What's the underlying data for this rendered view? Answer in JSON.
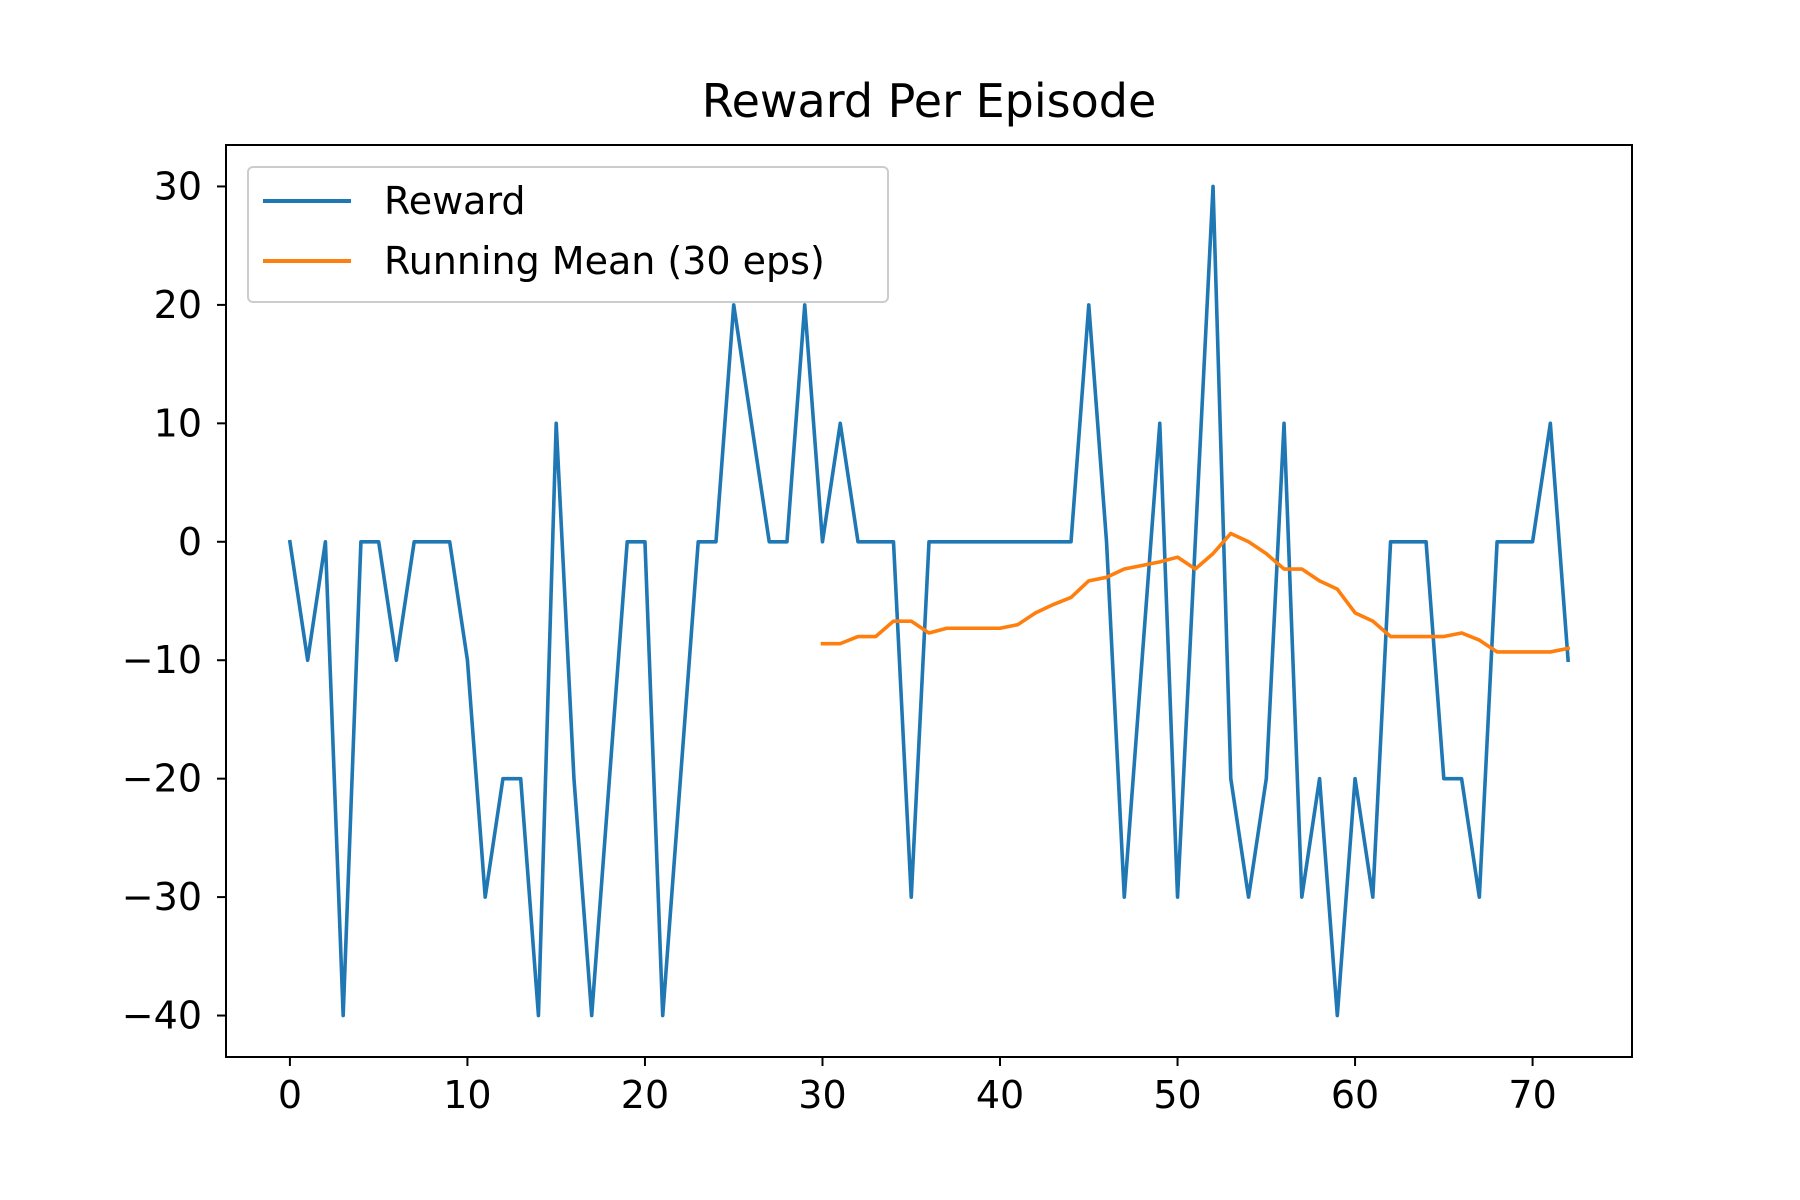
{
  "chart_data": {
    "type": "line",
    "title": "Reward Per Episode",
    "xlabel": "",
    "ylabel": "",
    "xlim": [
      -3.6,
      75.6
    ],
    "ylim": [
      -43.5,
      33.5
    ],
    "x_ticks": [
      0,
      10,
      20,
      30,
      40,
      50,
      60,
      70
    ],
    "y_ticks": [
      30,
      20,
      10,
      0,
      -10,
      -20,
      -30,
      -40
    ],
    "x_tick_labels": [
      "0",
      "10",
      "20",
      "30",
      "40",
      "50",
      "60",
      "70"
    ],
    "y_tick_labels": [
      "30",
      "20",
      "10",
      "0",
      "−10",
      "−20",
      "−30",
      "−40"
    ],
    "grid": false,
    "legend_position": "top-left",
    "series": [
      {
        "name": "Reward",
        "color": "#1f77b4",
        "x": [
          0,
          1,
          2,
          3,
          4,
          5,
          6,
          7,
          8,
          9,
          10,
          11,
          12,
          13,
          14,
          15,
          16,
          17,
          18,
          19,
          20,
          21,
          22,
          23,
          24,
          25,
          26,
          27,
          28,
          29,
          30,
          31,
          32,
          33,
          34,
          35,
          36,
          37,
          38,
          39,
          40,
          41,
          42,
          43,
          44,
          45,
          46,
          47,
          48,
          49,
          50,
          51,
          52,
          53,
          54,
          55,
          56,
          57,
          58,
          59,
          60,
          61,
          62,
          63,
          64,
          65,
          66,
          67,
          68,
          69,
          70,
          71,
          72
        ],
        "values": [
          0,
          -10,
          0,
          -40,
          0,
          0,
          -10,
          0,
          0,
          0,
          -10,
          -30,
          -20,
          -20,
          -40,
          10,
          -20,
          -40,
          -20,
          0,
          0,
          -40,
          -20,
          0,
          0,
          20,
          10,
          0,
          0,
          20,
          0,
          10,
          0,
          0,
          0,
          -30,
          0,
          0,
          0,
          0,
          0,
          0,
          0,
          0,
          0,
          20,
          0,
          -30,
          -10,
          10,
          -30,
          0,
          30,
          -20,
          -30,
          -20,
          10,
          -30,
          -20,
          -40,
          -20,
          -30,
          0,
          0,
          0,
          -20,
          -20,
          -30,
          0,
          0,
          0,
          10,
          -10
        ]
      },
      {
        "name": "Running Mean (30 eps)",
        "color": "#ff7f0e",
        "x": [
          30,
          31,
          32,
          33,
          34,
          35,
          36,
          37,
          38,
          39,
          40,
          41,
          42,
          43,
          44,
          45,
          46,
          47,
          48,
          49,
          50,
          51,
          52,
          53,
          54,
          55,
          56,
          57,
          58,
          59,
          60,
          61,
          62,
          63,
          64,
          65,
          66,
          67,
          68,
          69,
          70,
          71,
          72
        ],
        "values": [
          -8.6,
          -8.6,
          -8.0,
          -8.0,
          -6.7,
          -6.7,
          -7.7,
          -7.3,
          -7.3,
          -7.3,
          -7.3,
          -7.0,
          -6.0,
          -5.3,
          -4.7,
          -3.3,
          -3.0,
          -2.3,
          -2.0,
          -1.7,
          -1.3,
          -2.3,
          -1.0,
          0.7,
          0.0,
          -1.0,
          -2.3,
          -2.3,
          -3.3,
          -4.0,
          -6.0,
          -6.7,
          -8.0,
          -8.0,
          -8.0,
          -8.0,
          -7.7,
          -8.3,
          -9.3,
          -9.3,
          -9.3,
          -9.3,
          -9.0
        ]
      }
    ]
  }
}
